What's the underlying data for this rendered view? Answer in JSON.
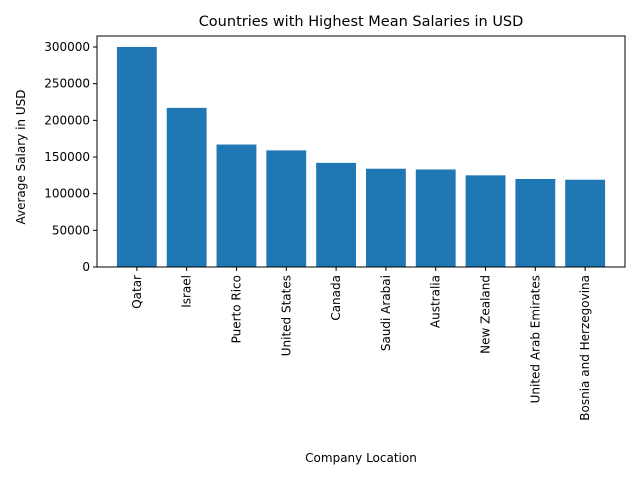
{
  "chart_data": {
    "type": "bar",
    "title": "Countries with Highest Mean Salaries in USD",
    "xlabel": "Company Location",
    "ylabel": "Average Salary in USD",
    "categories": [
      "Qatar",
      "Israel",
      "Puerto Rico",
      "United States",
      "Canada",
      "Saudi Arabai",
      "Australia",
      "New Zealand",
      "United Arab Emirates",
      "Bosnia and Herzegovina"
    ],
    "values": [
      300000,
      217000,
      167000,
      159000,
      142000,
      134000,
      133000,
      125000,
      120000,
      119000
    ],
    "ylim": [
      0,
      315000
    ],
    "yticks": [
      0,
      50000,
      100000,
      150000,
      200000,
      250000,
      300000
    ],
    "bar_color": "#1f77b4",
    "grid": false,
    "legend": "none"
  }
}
